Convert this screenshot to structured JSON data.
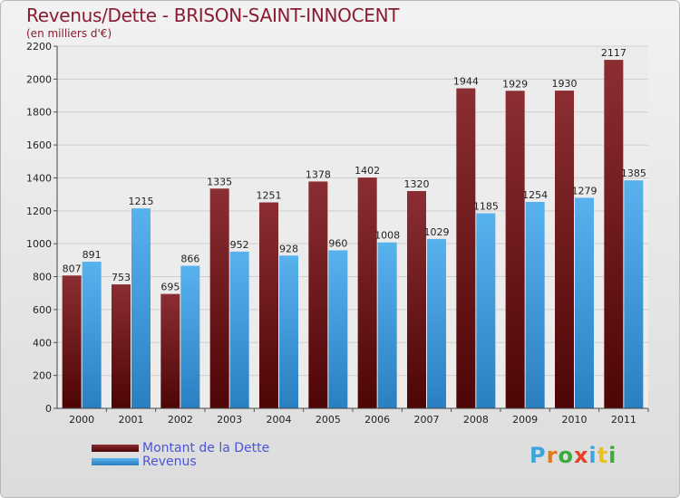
{
  "title": "Revenus/Dette - BRISON-SAINT-INNOCENT",
  "subtitle": "(en milliers d'€)",
  "logo": {
    "text": "Proxiti",
    "colors": [
      "#3da5de",
      "#e07b1e",
      "#3cab3c",
      "#e8412a",
      "#3da5de",
      "#e8c21e",
      "#3cab3c"
    ]
  },
  "colors": {
    "dette": "#7e1f22",
    "dette_dark": "#550606",
    "revenus": "#4aa6e6",
    "revenus_dark": "#2a79b8",
    "text": "#222222",
    "axis": "#333333"
  },
  "chart_data": {
    "type": "bar",
    "categories": [
      "2000",
      "2001",
      "2002",
      "2003",
      "2004",
      "2005",
      "2006",
      "2007",
      "2008",
      "2009",
      "2010",
      "2011"
    ],
    "series": [
      {
        "name": "Montant de la Dette",
        "values": [
          807,
          753,
          695,
          1335,
          1251,
          1378,
          1402,
          1320,
          1944,
          1929,
          1930,
          2117
        ]
      },
      {
        "name": "Revenus",
        "values": [
          891,
          1215,
          866,
          952,
          928,
          960,
          1008,
          1029,
          1185,
          1254,
          1279,
          1385
        ]
      }
    ],
    "ylim": [
      0,
      2200
    ],
    "yticks": [
      0,
      200,
      400,
      600,
      800,
      1000,
      1200,
      1400,
      1600,
      1800,
      2000,
      2200
    ],
    "grid": true,
    "legend_position": "bottom-left"
  }
}
